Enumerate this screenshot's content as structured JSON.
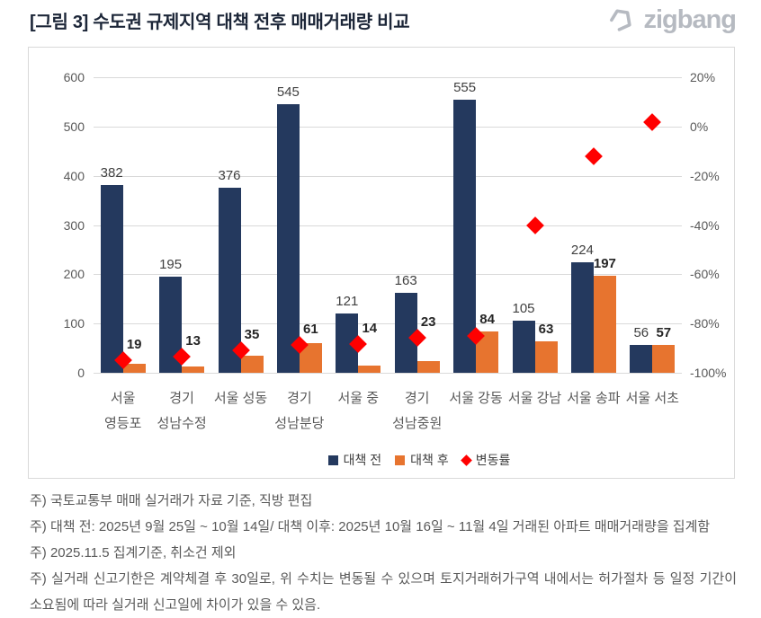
{
  "header": {
    "title": "[그림 3] 수도권 규제지역 대책 전후 매매거래량 비교",
    "logo_text": "zigbang",
    "logo_color": "#b6bac1"
  },
  "chart_data": {
    "type": "bar",
    "subtype": "clustered-bar-with-scatter-combo",
    "categories": [
      "서울 영등포",
      "경기 성남수정",
      "서울 성동",
      "경기 성남분당",
      "서울 중",
      "경기 성남중원",
      "서울 강동",
      "서울 강남",
      "서울 송파",
      "서울 서초"
    ],
    "category_label_lines": [
      [
        "서울",
        "영등포"
      ],
      [
        "경기",
        "성남수정"
      ],
      [
        "서울 성동"
      ],
      [
        "경기",
        "성남분당"
      ],
      [
        "서울 중"
      ],
      [
        "경기",
        "성남중원"
      ],
      [
        "서울 강동"
      ],
      [
        "서울 강남"
      ],
      [
        "서울 송파"
      ],
      [
        "서울 서초"
      ]
    ],
    "series": [
      {
        "name": "대책 전",
        "type": "bar",
        "axis": "left",
        "color": "#24395E",
        "values": [
          382,
          195,
          376,
          545,
          121,
          163,
          555,
          105,
          224,
          56
        ]
      },
      {
        "name": "대책 후",
        "type": "bar",
        "axis": "left",
        "color": "#E7742F",
        "values": [
          19,
          13,
          35,
          61,
          14,
          23,
          84,
          63,
          197,
          57
        ]
      },
      {
        "name": "변동률",
        "type": "scatter",
        "marker": "diamond",
        "axis": "right",
        "color": "#FF0000",
        "unit": "%",
        "values": [
          -95.0,
          -93.3,
          -90.7,
          -88.8,
          -88.4,
          -85.9,
          -84.9,
          -40.0,
          -12.1,
          1.8
        ]
      }
    ],
    "left_axis": {
      "min": 0,
      "max": 600,
      "tick_step": 100,
      "ticks": [
        "600",
        "500",
        "400",
        "300",
        "200",
        "100",
        "0"
      ]
    },
    "right_axis": {
      "min": -100,
      "max": 20,
      "tick_step": 20,
      "ticks": [
        "20%",
        "0%",
        "-20%",
        "-40%",
        "-60%",
        "-80%",
        "-100%"
      ]
    },
    "grid": true,
    "legend_position": "bottom",
    "gridline_color": "#d9d9d9"
  },
  "footnotes": [
    "주) 국토교통부 매매 실거래가 자료 기준, 직방 편집",
    "주) 대책 전: 2025년 9월 25일 ~ 10월 14일/ 대책 이후: 2025년 10월 16일 ~ 11월 4일 거래된 아파트 매매거래량을 집계함",
    "주) 2025.11.5 집계기준, 취소건 제외",
    "주) 실거래 신고기한은 계약체결 후 30일로, 위 수치는 변동될 수 있으며 토지거래허가구역 내에서는 허가절차 등 일정 기간이 소요됨에 따라 실거래 신고일에 차이가 있을 수 있음."
  ]
}
